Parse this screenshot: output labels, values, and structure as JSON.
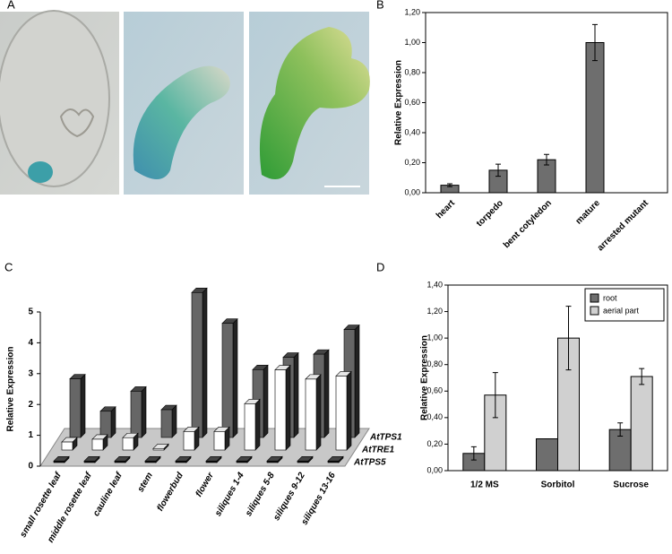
{
  "image_panel": {
    "label": "A"
  },
  "chart_data": [
    {
      "type": "bar",
      "label": "B",
      "y_label": "Relative Expression",
      "categories": [
        "heart",
        "torpedo",
        "bent cotyledon",
        "mature",
        "arrested mutant"
      ],
      "values": [
        0.05,
        0.15,
        0.22,
        1.0,
        null
      ],
      "errors": [
        0.01,
        0.04,
        0.035,
        0.12,
        null
      ],
      "color": "#6e6e6e",
      "ylim": [
        0,
        1.2
      ],
      "yticks": [
        {
          "value": 0,
          "label": "0,00"
        },
        {
          "value": 0.2,
          "label": "0,20"
        },
        {
          "value": 0.4,
          "label": "0,40"
        },
        {
          "value": 0.6,
          "label": "0,60"
        },
        {
          "value": 0.8,
          "label": "0,80"
        },
        {
          "value": 1.0,
          "label": "1,00"
        },
        {
          "value": 1.2,
          "label": "1,20"
        }
      ]
    },
    {
      "type": "bar3d",
      "label": "C",
      "y_label": "Relative Expression",
      "categories": [
        "small rosette leaf",
        "middle rosette leaf",
        "cauline leaf",
        "stem",
        "flowerbud",
        "flower",
        "siliques 1-4",
        "siliques 5-8",
        "siliques 9-12",
        "siliques 13-16"
      ],
      "series": [
        {
          "name": "AtTPS5",
          "color": "#111111",
          "values": [
            0.05,
            0.05,
            0.05,
            0.05,
            0.05,
            0.05,
            0.05,
            0.05,
            0.05,
            0.05
          ]
        },
        {
          "name": "AtTRE1",
          "color": "#ffffff",
          "values": [
            0.26,
            0.35,
            0.4,
            0.05,
            0.6,
            0.6,
            1.5,
            2.6,
            2.3,
            2.4
          ]
        },
        {
          "name": "AtTPS1",
          "color": "#666666",
          "values": [
            1.9,
            0.85,
            1.5,
            0.9,
            4.7,
            3.7,
            2.2,
            2.6,
            2.7,
            3.5
          ]
        }
      ],
      "ylim": [
        0,
        5
      ],
      "yticks": [
        0,
        1,
        2,
        3,
        4,
        5
      ]
    },
    {
      "type": "bar",
      "label": "D",
      "y_label": "Relative Expression",
      "categories": [
        "1/2 MS",
        "Sorbitol",
        "Sucrose"
      ],
      "series": [
        {
          "name": "root",
          "color": "#6e6e6e",
          "values": [
            0.13,
            0.24,
            0.31
          ],
          "errors": [
            0.05,
            0,
            0.05
          ]
        },
        {
          "name": "aerial part",
          "color": "#d0d0d0",
          "values": [
            0.57,
            1.0,
            0.71
          ],
          "errors": [
            0.17,
            0.24,
            0.06
          ]
        }
      ],
      "legend": "top-right",
      "ylim": [
        0,
        1.4
      ],
      "yticks": [
        {
          "value": 0,
          "label": "0,00"
        },
        {
          "value": 0.2,
          "label": "0,20"
        },
        {
          "value": 0.4,
          "label": "0,40"
        },
        {
          "value": 0.6,
          "label": "0,60"
        },
        {
          "value": 0.8,
          "label": "0,80"
        },
        {
          "value": 1.0,
          "label": "1,00"
        },
        {
          "value": 1.2,
          "label": "1,20"
        },
        {
          "value": 1.4,
          "label": "1,40"
        }
      ]
    }
  ]
}
